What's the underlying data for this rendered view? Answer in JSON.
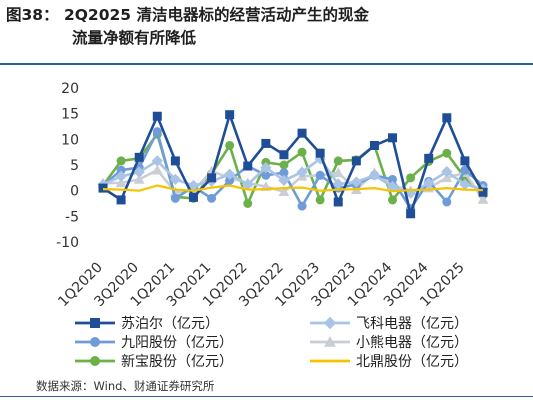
{
  "header": {
    "title_line1": "图38：  2Q2025 清洁电器标的经营活动产生的现金",
    "title_line2": "流量净额有所降低"
  },
  "footer": {
    "source": "数据来源：Wind、财通证券研究所"
  },
  "chart_data": {
    "type": "line",
    "title": "",
    "ylim": [
      -10,
      20
    ],
    "yticks": [
      -10,
      -5,
      0,
      5,
      10,
      15,
      20
    ],
    "grid": false,
    "legend_position": "bottom",
    "x": [
      "1Q2020",
      "2Q2020",
      "3Q2020",
      "4Q2020",
      "1Q2021",
      "2Q2021",
      "3Q2021",
      "4Q2021",
      "1Q2022",
      "2Q2022",
      "3Q2022",
      "4Q2022",
      "1Q2023",
      "2Q2023",
      "3Q2023",
      "4Q2023",
      "1Q2024",
      "2Q2024",
      "3Q2024",
      "4Q2024",
      "1Q2025",
      "2Q2025"
    ],
    "xtick_labels": [
      "1Q2020",
      "3Q2020",
      "1Q2021",
      "3Q2021",
      "1Q2022",
      "3Q2022",
      "1Q2023",
      "3Q2023",
      "1Q2024",
      "3Q2024",
      "1Q2025"
    ],
    "series": [
      {
        "name": "苏泊尔（亿元）",
        "color": "#1f4e96",
        "marker": "square",
        "values": [
          0.5,
          -1.8,
          6.5,
          14.5,
          5.8,
          -1.3,
          2.5,
          14.8,
          4.8,
          9.2,
          7.0,
          11.2,
          7.3,
          -2.2,
          5.8,
          8.8,
          10.3,
          -4.5,
          6.3,
          14.2,
          5.8,
          -0.3
        ]
      },
      {
        "name": "飞科电器（亿元）",
        "color": "#a9c4e4",
        "marker": "diamond",
        "values": [
          1.2,
          2.8,
          3.6,
          5.8,
          2.2,
          1.0,
          1.8,
          3.2,
          1.2,
          4.5,
          2.0,
          3.6,
          6.2,
          1.3,
          1.7,
          3.0,
          0.8,
          -0.5,
          1.5,
          3.7,
          1.2,
          0.3
        ]
      },
      {
        "name": "九阳股份（亿元）",
        "color": "#6f9cd8",
        "marker": "circle",
        "values": [
          1.0,
          4.0,
          4.5,
          11.5,
          -1.5,
          0.8,
          -1.5,
          2.0,
          4.8,
          3.0,
          3.5,
          -3.0,
          3.0,
          0.5,
          1.2,
          3.0,
          2.2,
          -3.5,
          1.8,
          -2.2,
          4.0,
          1.0
        ]
      },
      {
        "name": "小熊电器（亿元）",
        "color": "#c9ced6",
        "marker": "triangle",
        "values": [
          1.5,
          1.5,
          2.2,
          4.0,
          -0.3,
          0.0,
          3.8,
          2.5,
          1.5,
          0.8,
          -0.2,
          2.8,
          3.0,
          3.5,
          0.2,
          3.5,
          1.0,
          0.0,
          0.5,
          2.5,
          3.5,
          -1.7
        ]
      },
      {
        "name": "新宝股份（亿元）",
        "color": "#6cb04a",
        "marker": "circle",
        "values": [
          1.0,
          5.8,
          6.3,
          11.0,
          -1.2,
          -1.5,
          3.3,
          8.8,
          -2.5,
          5.5,
          5.0,
          7.5,
          -1.8,
          5.8,
          6.0,
          8.8,
          -1.8,
          2.5,
          5.7,
          7.3,
          2.5,
          -0.8
        ]
      },
      {
        "name": "北鼎股份（亿元）",
        "color": "#f5c400",
        "marker": "none",
        "values": [
          0.3,
          0.2,
          0.0,
          1.0,
          0.2,
          0.0,
          0.6,
          1.0,
          0.2,
          0.3,
          0.5,
          0.6,
          0.0,
          0.2,
          0.3,
          0.5,
          -0.1,
          0.1,
          0.2,
          0.5,
          0.2,
          0.1
        ]
      }
    ]
  }
}
